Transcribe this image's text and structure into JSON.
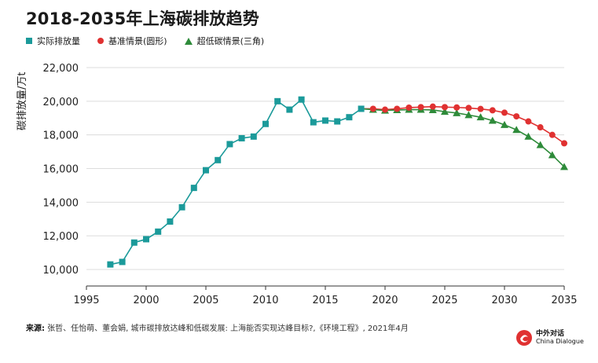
{
  "title": "2018-2035年上海碳排放趋势",
  "source_label": "来源:",
  "source_text": " 张哲、任怡萌、董会娟, 城市碳排放达峰和低碳发展: 上海能否实现达峰目标?,《环境工程》, 2021年4月",
  "logo": {
    "cn": "中外对话",
    "en": "China Dialogue"
  },
  "colors": {
    "actual": "#1b9a9a",
    "baseline": "#e03131",
    "low_carbon": "#2e8b3a",
    "grid": "#dcdcdc"
  },
  "chart_data": {
    "type": "line",
    "title": "2018-2035年上海碳排放趋势",
    "xlabel": "",
    "ylabel": "碳排放量/万t",
    "xlim": [
      1995,
      2035
    ],
    "ylim": [
      9500,
      22500
    ],
    "x_ticks": [
      "1995",
      "2000",
      "2005",
      "2010",
      "2015",
      "2020",
      "2025",
      "2030",
      "2035"
    ],
    "y_ticks": [
      "10,000",
      "12,000",
      "14,000",
      "16,000",
      "18,000",
      "20,000",
      "22,000"
    ],
    "grid": "horizontal",
    "legend_position": "top-left",
    "series": [
      {
        "name": "实际排放量",
        "marker": "square",
        "x": [
          1997,
          1998,
          1999,
          2000,
          2001,
          2002,
          2003,
          2004,
          2005,
          2006,
          2007,
          2008,
          2009,
          2010,
          2011,
          2012,
          2013,
          2014,
          2015,
          2016,
          2017,
          2018
        ],
        "y": [
          10300,
          10450,
          11600,
          11800,
          12250,
          12850,
          13700,
          14850,
          15900,
          16500,
          17450,
          17800,
          17900,
          18650,
          20000,
          19500,
          20100,
          18750,
          18850,
          18800,
          19050,
          19550
        ]
      },
      {
        "name": "基准情景(圆形)",
        "marker": "circle",
        "x": [
          2019,
          2020,
          2021,
          2022,
          2023,
          2024,
          2025,
          2026,
          2027,
          2028,
          2029,
          2030,
          2031,
          2032,
          2033,
          2034,
          2035
        ],
        "y": [
          19550,
          19500,
          19550,
          19620,
          19650,
          19680,
          19650,
          19630,
          19600,
          19540,
          19460,
          19320,
          19100,
          18800,
          18450,
          18000,
          17500
        ]
      },
      {
        "name": "超低碳情景(三角)",
        "marker": "triangle",
        "x": [
          2019,
          2020,
          2021,
          2022,
          2023,
          2024,
          2025,
          2026,
          2027,
          2028,
          2029,
          2030,
          2031,
          2032,
          2033,
          2034,
          2035
        ],
        "y": [
          19500,
          19450,
          19480,
          19500,
          19500,
          19480,
          19380,
          19300,
          19180,
          19050,
          18850,
          18600,
          18300,
          17900,
          17400,
          16800,
          16100
        ]
      }
    ]
  }
}
